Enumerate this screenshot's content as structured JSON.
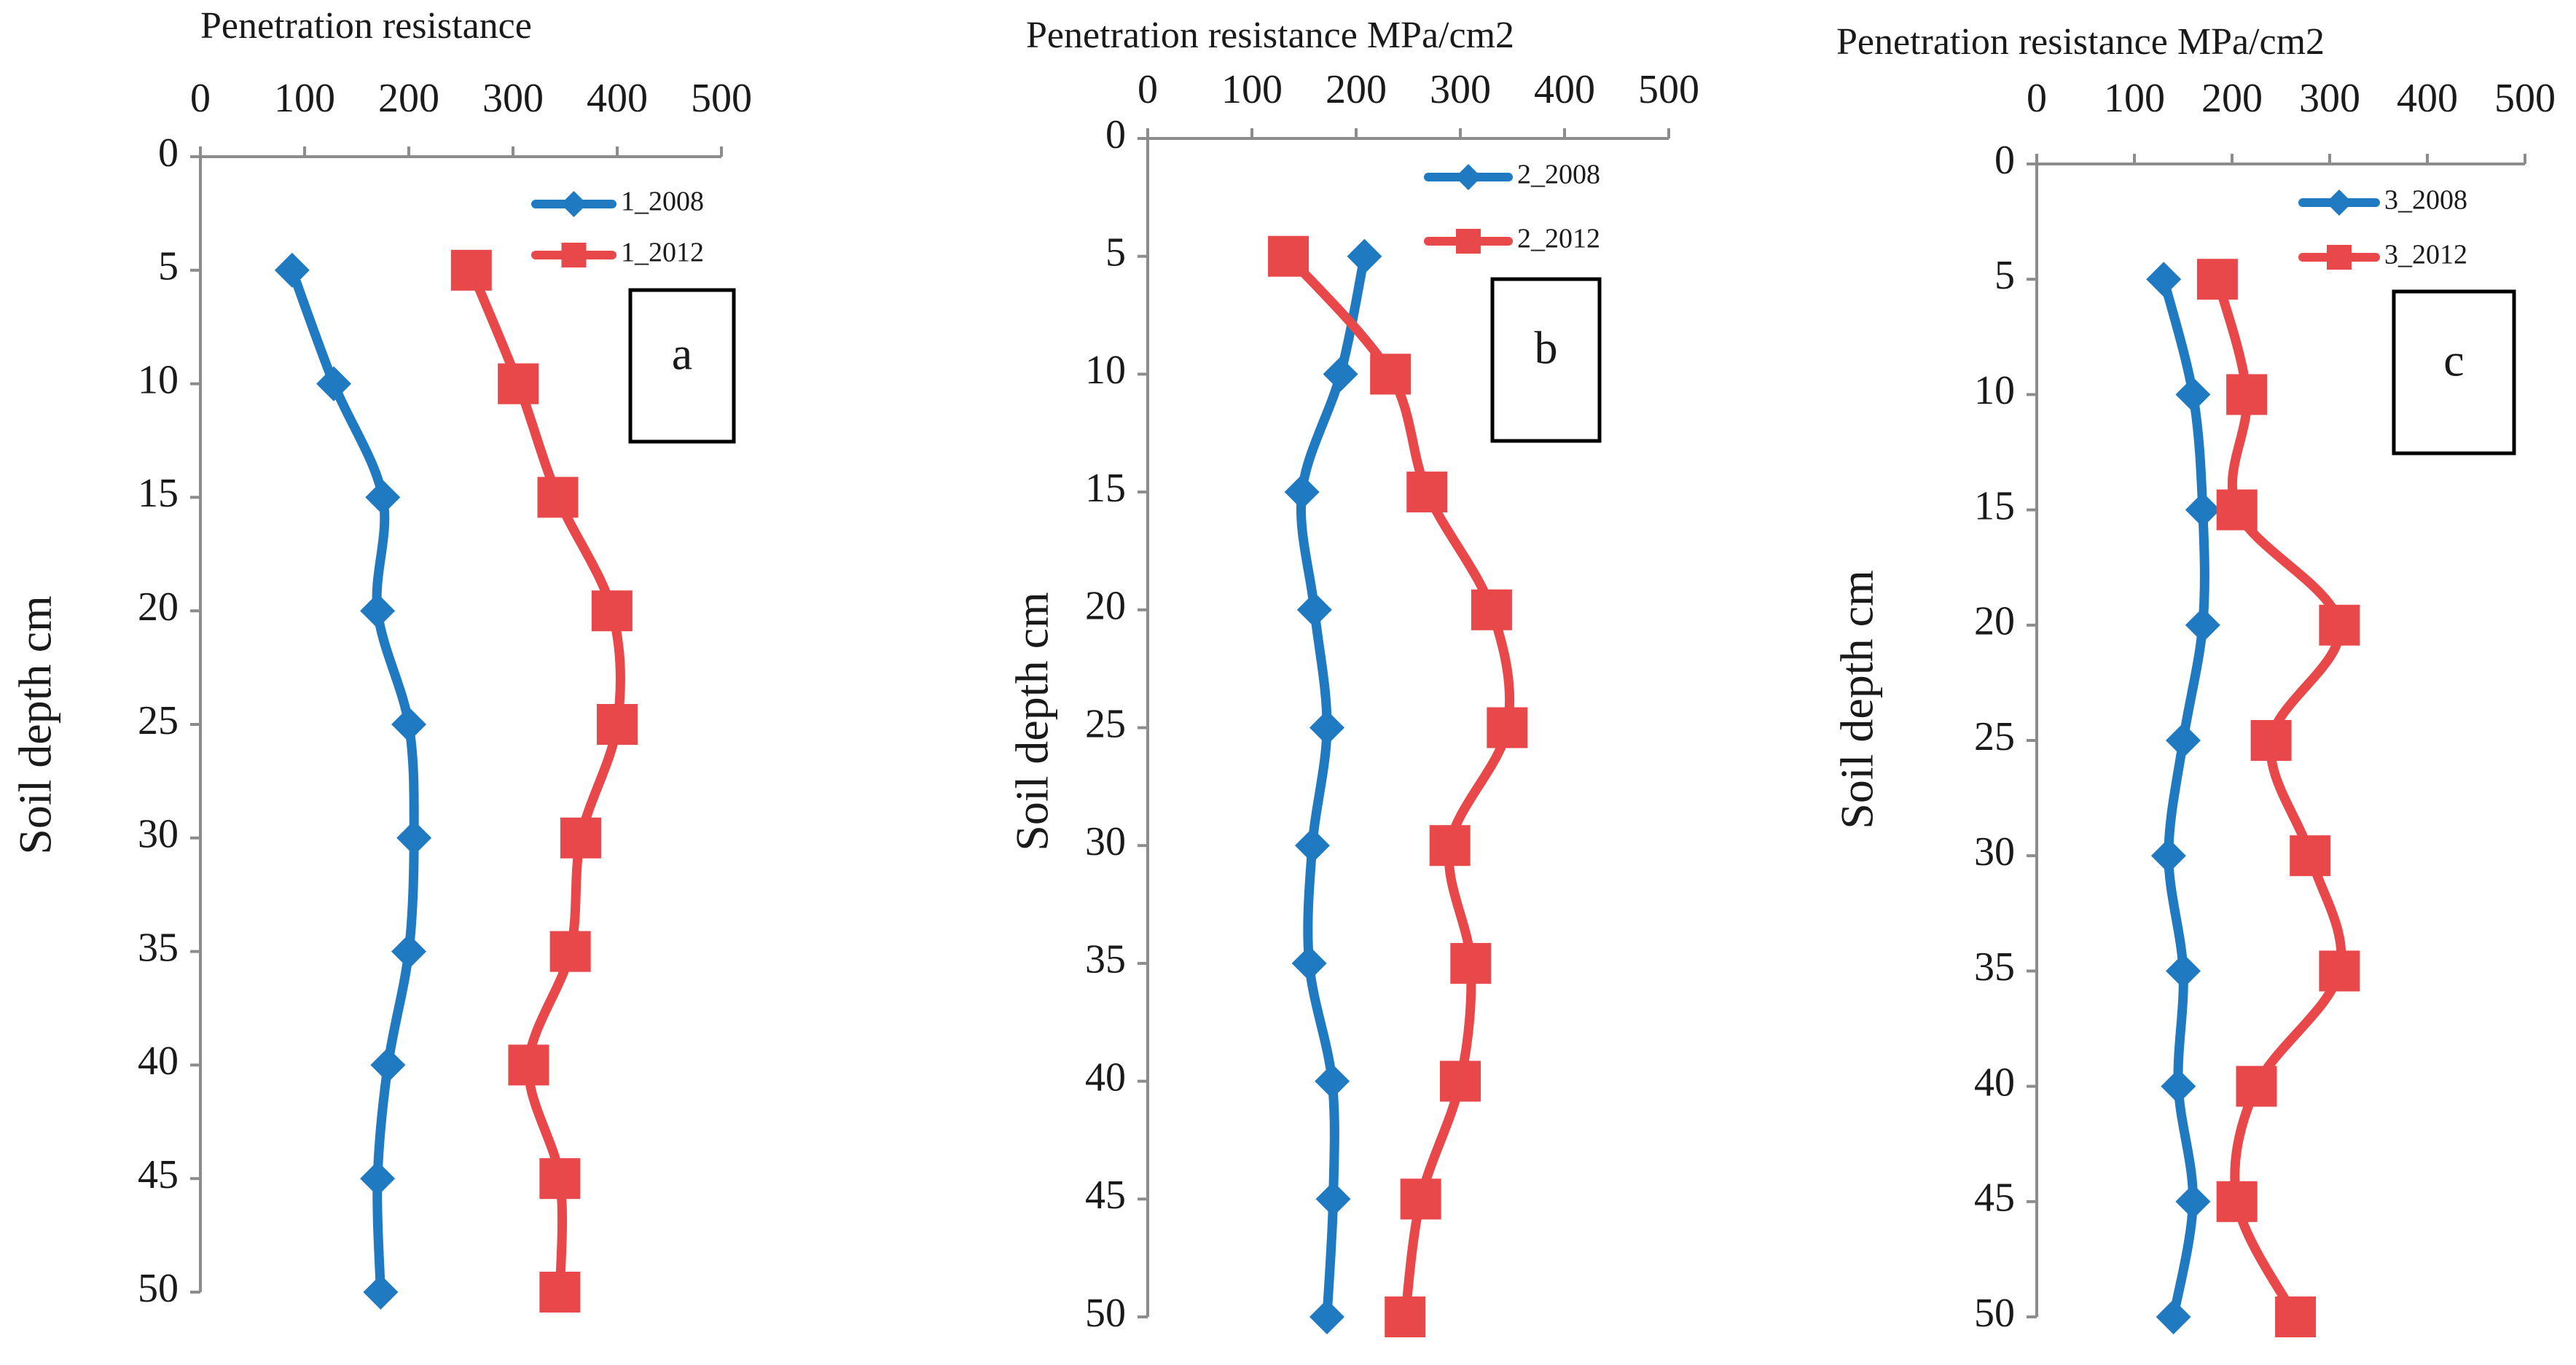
{
  "figure_description_title": "",
  "colors": {
    "series_2008": "#1f7ac2",
    "series_2012": "#e8484a",
    "axis": "#8c8c8c",
    "text": "#1a1a1a"
  },
  "chart_data": [
    {
      "type": "line",
      "panel": "a",
      "title": "Penetration  resistance",
      "xlabel": "Penetration  resistance",
      "ylabel": "Soil depth cm",
      "xlim": [
        0,
        500
      ],
      "ylim": [
        0,
        50
      ],
      "x_ticks": [
        "0",
        "100",
        "200",
        "300",
        "400",
        "500"
      ],
      "y_ticks": [
        "0",
        "5",
        "10",
        "15",
        "20",
        "25",
        "30",
        "35",
        "40",
        "45",
        "50"
      ],
      "y_inverted": true,
      "depths": [
        5,
        10,
        15,
        20,
        25,
        30,
        35,
        40,
        45,
        50
      ],
      "series": [
        {
          "name": "1_2008",
          "marker": "diamond",
          "values": [
            88,
            128,
            175,
            170,
            200,
            205,
            200,
            180,
            170,
            173
          ]
        },
        {
          "name": "1_2012",
          "marker": "square",
          "values": [
            260,
            305,
            343,
            395,
            400,
            365,
            355,
            315,
            345,
            345
          ]
        }
      ],
      "legend_position": "top-right",
      "annotation": "a"
    },
    {
      "type": "line",
      "panel": "b",
      "title": "Penetration  resistance MPa/cm2",
      "xlabel": "Penetration  resistance MPa/cm2",
      "ylabel": "Soil depth cm",
      "xlim": [
        0,
        500
      ],
      "ylim": [
        0,
        50
      ],
      "x_ticks": [
        "0",
        "100",
        "200",
        "300",
        "400",
        "500"
      ],
      "y_ticks": [
        "0",
        "5",
        "10",
        "15",
        "20",
        "25",
        "30",
        "35",
        "40",
        "45",
        "50"
      ],
      "y_inverted": true,
      "depths": [
        5,
        10,
        15,
        20,
        25,
        30,
        35,
        40,
        45,
        50
      ],
      "series": [
        {
          "name": "2_2008",
          "marker": "diamond",
          "values": [
            208,
            185,
            148,
            160,
            172,
            158,
            155,
            177,
            178,
            172
          ]
        },
        {
          "name": "2_2012",
          "marker": "square",
          "values": [
            135,
            233,
            268,
            330,
            345,
            290,
            310,
            300,
            262,
            247
          ]
        }
      ],
      "legend_position": "top-right",
      "annotation": "b"
    },
    {
      "type": "line",
      "panel": "c",
      "title": "Penetration  resistance MPa/cm2",
      "xlabel": "Penetration  resistance MPa/cm2",
      "ylabel": "Soil depth cm",
      "xlim": [
        0,
        500
      ],
      "ylim": [
        0,
        50
      ],
      "x_ticks": [
        "0",
        "100",
        "200",
        "300",
        "400",
        "500"
      ],
      "y_ticks": [
        "0",
        "5",
        "10",
        "15",
        "20",
        "25",
        "30",
        "35",
        "40",
        "45",
        "50"
      ],
      "y_inverted": true,
      "depths": [
        5,
        10,
        15,
        20,
        25,
        30,
        35,
        40,
        45,
        50
      ],
      "series": [
        {
          "name": "3_2008",
          "marker": "diamond",
          "values": [
            130,
            160,
            170,
            170,
            150,
            135,
            150,
            145,
            160,
            140
          ]
        },
        {
          "name": "3_2012",
          "marker": "square",
          "values": [
            185,
            215,
            205,
            310,
            240,
            280,
            310,
            225,
            205,
            265
          ]
        }
      ],
      "legend_position": "top-right",
      "annotation": "c"
    }
  ]
}
